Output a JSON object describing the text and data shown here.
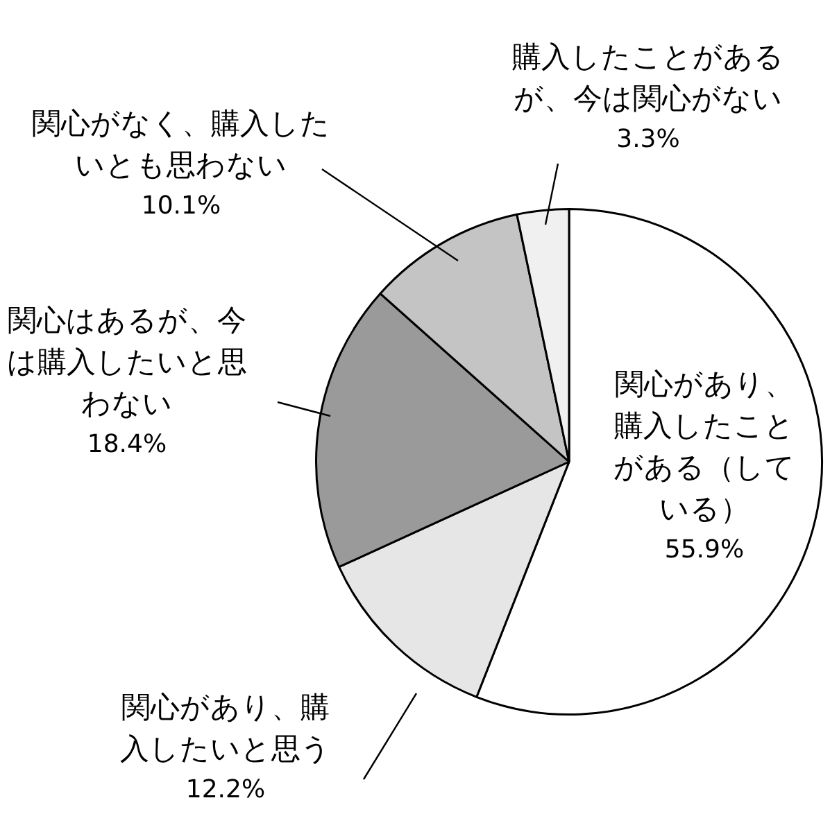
{
  "chart_data": {
    "type": "pie",
    "categories": [
      "関心があり、購入したことがある（している）",
      "関心があり、購入したいと思う",
      "関心はあるが、今は購入したいと思わない",
      "関心がなく、購入したいとも思わない",
      "購入したことがあるが、今は関心がない"
    ],
    "values": [
      55.9,
      12.2,
      18.4,
      10.1,
      3.3
    ],
    "value_labels": [
      "55.9%",
      "12.2%",
      "18.4%",
      "10.1%",
      "3.3%"
    ],
    "colors": [
      "#ffffff",
      "#e6e6e6",
      "#9a9a9a",
      "#c4c4c4",
      "#f0f0f0"
    ],
    "legend": false
  }
}
